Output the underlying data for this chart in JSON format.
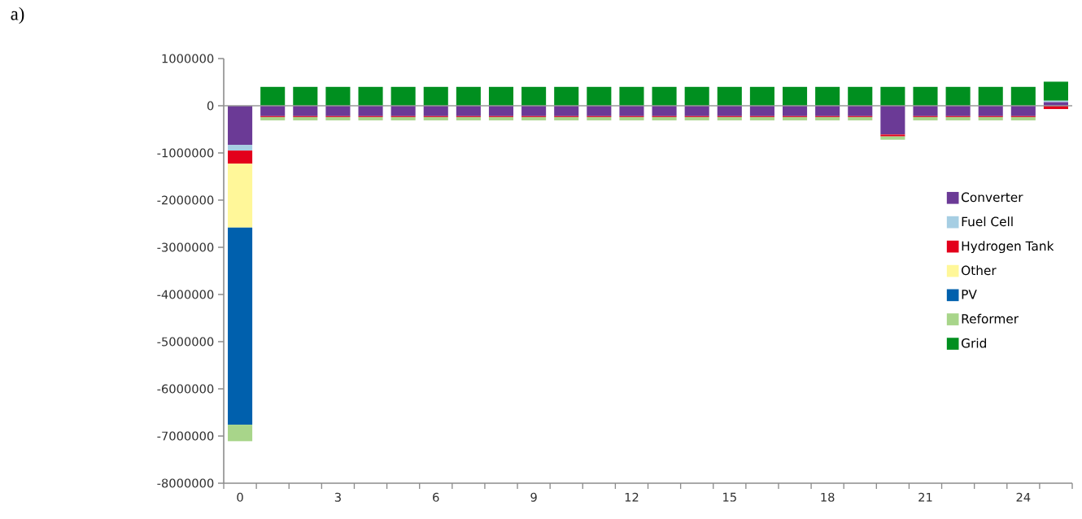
{
  "chart_data": {
    "type": "bar",
    "stacked": true,
    "annotations": [
      "a)"
    ],
    "categories": [
      "0",
      null,
      null,
      "3",
      null,
      null,
      "6",
      null,
      null,
      "9",
      null,
      null,
      "12",
      null,
      null,
      "15",
      null,
      null,
      "18",
      null,
      null,
      "21",
      null,
      null,
      "24",
      null
    ],
    "series": [
      {
        "name": "Converter",
        "color": "#6b3a96",
        "values": [
          -830000,
          -220000,
          -220000,
          -220000,
          -220000,
          -220000,
          -220000,
          -220000,
          -220000,
          -220000,
          -220000,
          -220000,
          -220000,
          -220000,
          -220000,
          -220000,
          -220000,
          -220000,
          -220000,
          -220000,
          -610000,
          -220000,
          -220000,
          -220000,
          -220000,
          80000
        ]
      },
      {
        "name": "Fuel Cell",
        "color": "#a6cee3",
        "values": [
          -120000,
          null,
          null,
          null,
          null,
          null,
          null,
          null,
          null,
          null,
          null,
          null,
          null,
          null,
          null,
          null,
          null,
          null,
          null,
          null,
          null,
          null,
          null,
          null,
          null,
          30000
        ]
      },
      {
        "name": "Hydrogen Tank",
        "color": "#e3001b",
        "values": [
          -280000,
          -20000,
          -20000,
          -20000,
          -20000,
          -20000,
          -20000,
          -20000,
          -20000,
          -20000,
          -20000,
          -20000,
          -20000,
          -20000,
          -20000,
          -20000,
          -20000,
          -20000,
          -20000,
          -20000,
          -40000,
          -20000,
          -20000,
          -20000,
          -20000,
          -70000
        ]
      },
      {
        "name": "Other",
        "color": "#fff799",
        "values": [
          -1350000,
          null,
          null,
          null,
          null,
          null,
          null,
          null,
          null,
          null,
          null,
          null,
          null,
          null,
          null,
          null,
          null,
          null,
          null,
          null,
          null,
          null,
          null,
          null,
          null,
          null
        ]
      },
      {
        "name": "PV",
        "color": "#0060ad",
        "values": [
          -4180000,
          null,
          null,
          null,
          null,
          null,
          null,
          null,
          null,
          null,
          null,
          null,
          null,
          null,
          null,
          null,
          null,
          null,
          null,
          null,
          null,
          null,
          null,
          null,
          null,
          null
        ]
      },
      {
        "name": "Reformer",
        "color": "#a8d58a",
        "values": [
          -350000,
          -70000,
          -70000,
          -70000,
          -70000,
          -70000,
          -70000,
          -70000,
          -70000,
          -70000,
          -70000,
          -70000,
          -70000,
          -70000,
          -70000,
          -70000,
          -70000,
          -70000,
          -70000,
          -70000,
          -70000,
          -70000,
          -70000,
          -70000,
          -70000,
          null
        ]
      },
      {
        "name": "Grid",
        "color": "#008f1f",
        "values": [
          null,
          400000,
          400000,
          400000,
          400000,
          400000,
          400000,
          400000,
          400000,
          400000,
          400000,
          400000,
          400000,
          400000,
          400000,
          400000,
          400000,
          400000,
          400000,
          400000,
          400000,
          400000,
          400000,
          400000,
          400000,
          400000
        ]
      }
    ],
    "ylim": [
      -8000000,
      1000000
    ],
    "yticks": [
      1000000,
      0,
      -1000000,
      -2000000,
      -3000000,
      -4000000,
      -5000000,
      -6000000,
      -7000000,
      -8000000
    ],
    "ref_lines": [
      {
        "axis": "y",
        "value": 0,
        "color": "#999999"
      }
    ],
    "grid": false,
    "legend": "right"
  }
}
